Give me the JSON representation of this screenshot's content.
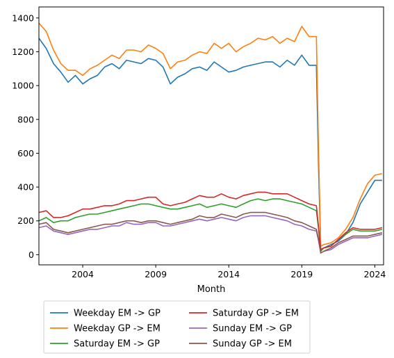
{
  "chart_data": {
    "type": "line",
    "title": "",
    "xlabel": "Month",
    "ylabel": "",
    "xlim": [
      2001.0,
      2024.6
    ],
    "ylim": [
      -60,
      1465
    ],
    "x_ticks": [
      2004,
      2009,
      2014,
      2019,
      2024
    ],
    "x_tick_labels": [
      "2004",
      "2009",
      "2014",
      "2019",
      "2024"
    ],
    "y_ticks": [
      0,
      200,
      400,
      600,
      800,
      1000,
      1200,
      1400
    ],
    "y_tick_labels": [
      "0",
      "200",
      "400",
      "600",
      "800",
      "1000",
      "1200",
      "1400"
    ],
    "grid": false,
    "legend_position": "below",
    "x": [
      2001.0,
      2001.5,
      2002.0,
      2002.5,
      2003.0,
      2003.5,
      2004.0,
      2004.5,
      2005.0,
      2005.5,
      2006.0,
      2006.5,
      2007.0,
      2007.5,
      2008.0,
      2008.5,
      2009.0,
      2009.5,
      2010.0,
      2010.5,
      2011.0,
      2011.5,
      2012.0,
      2012.5,
      2013.0,
      2013.5,
      2014.0,
      2014.5,
      2015.0,
      2015.5,
      2016.0,
      2016.5,
      2017.0,
      2017.5,
      2018.0,
      2018.5,
      2019.0,
      2019.5,
      2020.0,
      2020.15,
      2020.3,
      2020.5,
      2021.0,
      2021.5,
      2022.0,
      2022.5,
      2023.0,
      2023.5,
      2024.0,
      2024.5
    ],
    "series": [
      {
        "name": "Weekday EM -> GP",
        "color": "#1f77b4",
        "values": [
          1280,
          1220,
          1130,
          1080,
          1020,
          1060,
          1010,
          1040,
          1060,
          1110,
          1130,
          1100,
          1150,
          1140,
          1130,
          1160,
          1150,
          1110,
          1010,
          1050,
          1070,
          1100,
          1110,
          1090,
          1140,
          1110,
          1080,
          1090,
          1110,
          1120,
          1130,
          1140,
          1140,
          1110,
          1150,
          1120,
          1180,
          1120,
          1120,
          500,
          30,
          40,
          60,
          80,
          120,
          190,
          300,
          370,
          440,
          440
        ]
      },
      {
        "name": "Weekday GP -> EM",
        "color": "#ff7f0e",
        "values": [
          1370,
          1320,
          1210,
          1130,
          1090,
          1090,
          1060,
          1100,
          1120,
          1150,
          1180,
          1160,
          1210,
          1210,
          1200,
          1240,
          1220,
          1190,
          1100,
          1140,
          1150,
          1180,
          1200,
          1190,
          1250,
          1220,
          1250,
          1200,
          1230,
          1250,
          1280,
          1270,
          1290,
          1250,
          1280,
          1260,
          1350,
          1290,
          1290,
          600,
          50,
          60,
          70,
          100,
          150,
          220,
          330,
          420,
          470,
          480
        ]
      },
      {
        "name": "Saturday EM -> GP",
        "color": "#2ca02c",
        "values": [
          200,
          220,
          190,
          200,
          200,
          220,
          230,
          240,
          240,
          250,
          260,
          270,
          280,
          290,
          300,
          300,
          290,
          280,
          270,
          270,
          280,
          290,
          300,
          280,
          290,
          300,
          290,
          280,
          300,
          320,
          330,
          320,
          330,
          330,
          320,
          310,
          300,
          280,
          260,
          150,
          20,
          40,
          50,
          90,
          120,
          150,
          140,
          140,
          140,
          150
        ]
      },
      {
        "name": "Saturday GP -> EM",
        "color": "#d62728",
        "values": [
          250,
          260,
          220,
          220,
          230,
          250,
          270,
          270,
          280,
          290,
          290,
          300,
          320,
          320,
          330,
          340,
          340,
          300,
          290,
          300,
          310,
          330,
          350,
          340,
          340,
          360,
          340,
          330,
          350,
          360,
          370,
          370,
          360,
          360,
          360,
          340,
          320,
          300,
          290,
          160,
          30,
          40,
          50,
          90,
          130,
          160,
          150,
          150,
          150,
          160
        ]
      },
      {
        "name": "Sunday EM -> GP",
        "color": "#9467bd",
        "values": [
          160,
          170,
          140,
          130,
          120,
          130,
          140,
          150,
          150,
          160,
          170,
          170,
          190,
          180,
          180,
          190,
          190,
          170,
          170,
          180,
          190,
          200,
          210,
          200,
          210,
          220,
          210,
          200,
          220,
          230,
          230,
          230,
          220,
          210,
          200,
          180,
          170,
          150,
          140,
          80,
          10,
          20,
          30,
          60,
          80,
          100,
          100,
          100,
          110,
          120
        ]
      },
      {
        "name": "Sunday GP -> EM",
        "color": "#8c564b",
        "values": [
          180,
          190,
          150,
          140,
          130,
          140,
          150,
          160,
          170,
          180,
          180,
          190,
          200,
          200,
          190,
          200,
          200,
          190,
          180,
          190,
          200,
          210,
          230,
          220,
          220,
          240,
          230,
          220,
          240,
          250,
          250,
          250,
          240,
          230,
          220,
          200,
          190,
          170,
          150,
          90,
          10,
          20,
          40,
          70,
          90,
          110,
          110,
          110,
          120,
          130
        ]
      }
    ]
  }
}
